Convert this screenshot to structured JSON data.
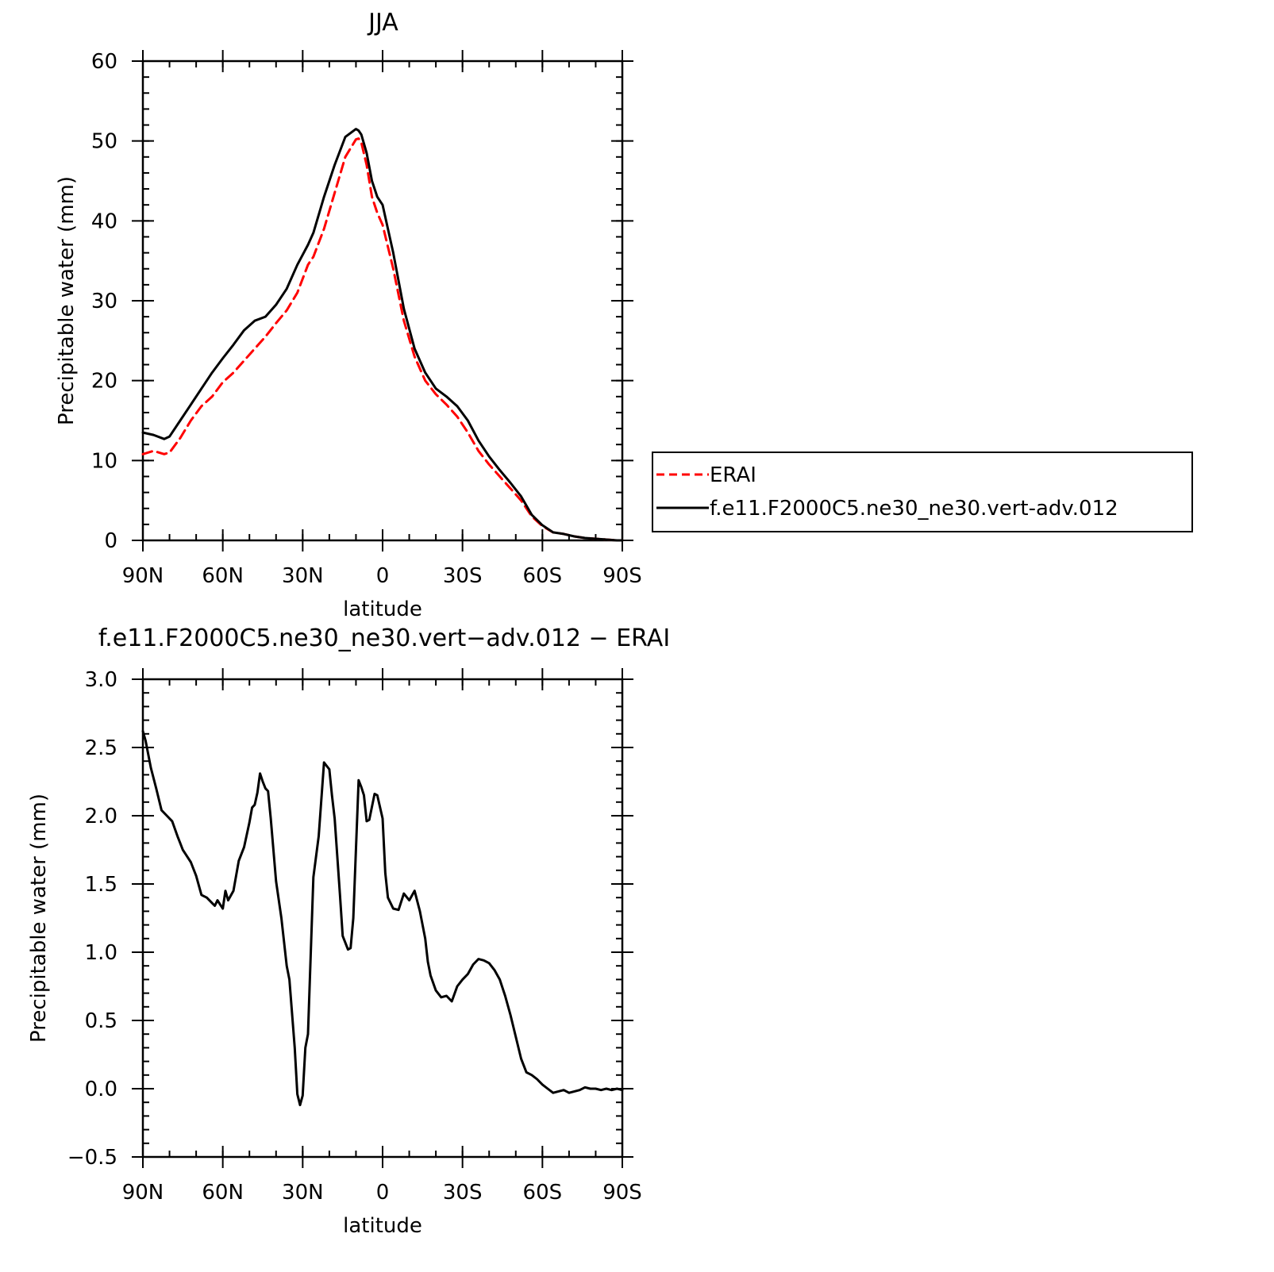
{
  "chart_data": [
    {
      "type": "line",
      "title": "JJA",
      "xlabel": "latitude",
      "ylabel": "Precipitable water (mm)",
      "xlim": [
        90,
        -90
      ],
      "ylim": [
        0,
        60
      ],
      "x_ticks": [
        90,
        60,
        30,
        0,
        -30,
        -60,
        -90
      ],
      "x_tick_labels": [
        "90N",
        "60N",
        "30N",
        "0",
        "30S",
        "60S",
        "90S"
      ],
      "y_ticks": [
        0,
        10,
        20,
        30,
        40,
        50,
        60
      ],
      "y_tick_labels": [
        "0",
        "10",
        "20",
        "30",
        "40",
        "50",
        "60"
      ],
      "legend_position": "right, outside plot",
      "series": [
        {
          "name": "ERAI",
          "color": "#ff0000",
          "style": "dashed",
          "x": [
            90,
            86,
            82,
            80,
            76,
            72,
            68,
            64,
            60,
            56,
            52,
            48,
            44,
            40,
            36,
            32,
            28,
            26,
            22,
            18,
            14,
            10,
            9,
            8,
            6,
            4,
            2,
            0,
            -4,
            -8,
            -12,
            -16,
            -20,
            -24,
            -28,
            -32,
            -36,
            -40,
            -44,
            -48,
            -52,
            -56,
            -60,
            -64,
            -68,
            -72,
            -76,
            -80,
            -84,
            -88,
            -90
          ],
          "values": [
            10.8,
            11.2,
            10.8,
            11.0,
            12.8,
            15.0,
            16.8,
            18.0,
            19.8,
            21.0,
            22.5,
            24.0,
            25.5,
            27.2,
            28.8,
            31.0,
            34.5,
            35.5,
            39.0,
            43.5,
            48.0,
            50.2,
            50.3,
            49.8,
            47.0,
            43.0,
            41.0,
            39.5,
            34.0,
            27.5,
            23.0,
            20.0,
            18.3,
            17.0,
            15.5,
            13.5,
            11.2,
            9.5,
            8.0,
            6.5,
            5.0,
            3.0,
            1.8,
            1.0,
            0.8,
            0.5,
            0.3,
            0.2,
            0.1,
            0.0,
            0.0
          ]
        },
        {
          "name": "f.e11.F2000C5.ne30_ne30.vert-adv.012",
          "color": "#000000",
          "style": "solid",
          "x": [
            90,
            86,
            82,
            80,
            76,
            72,
            68,
            64,
            60,
            56,
            52,
            48,
            44,
            40,
            36,
            32,
            28,
            26,
            22,
            18,
            14,
            10,
            9,
            8,
            6,
            4,
            2,
            0,
            -4,
            -8,
            -12,
            -16,
            -20,
            -24,
            -28,
            -32,
            -36,
            -40,
            -44,
            -48,
            -52,
            -56,
            -60,
            -64,
            -68,
            -72,
            -76,
            -80,
            -84,
            -88,
            -90
          ],
          "values": [
            13.5,
            13.2,
            12.7,
            13.0,
            15.0,
            17.0,
            19.0,
            21.0,
            22.8,
            24.5,
            26.3,
            27.5,
            28.0,
            29.5,
            31.5,
            34.5,
            37.0,
            38.5,
            43.0,
            47.0,
            50.5,
            51.5,
            51.3,
            50.8,
            48.5,
            45.0,
            43.0,
            42.0,
            36.0,
            29.0,
            24.0,
            21.0,
            19.0,
            18.0,
            16.8,
            15.0,
            12.5,
            10.5,
            8.8,
            7.2,
            5.5,
            3.2,
            1.9,
            1.0,
            0.8,
            0.5,
            0.3,
            0.2,
            0.1,
            0.0,
            0.0
          ]
        }
      ]
    },
    {
      "type": "line",
      "title": "f.e11.F2000C5.ne30_ne30.vert−adv.012 − ERAI",
      "xlabel": "latitude",
      "ylabel": "Precipitable water (mm)",
      "xlim": [
        90,
        -90
      ],
      "ylim": [
        -0.5,
        3.0
      ],
      "x_ticks": [
        90,
        60,
        30,
        0,
        -30,
        -60,
        -90
      ],
      "x_tick_labels": [
        "90N",
        "60N",
        "30N",
        "0",
        "30S",
        "60S",
        "90S"
      ],
      "y_ticks": [
        -0.5,
        0.0,
        0.5,
        1.0,
        1.5,
        2.0,
        2.5,
        3.0
      ],
      "y_tick_labels": [
        "−0.5",
        "0.0",
        "0.5",
        "1.0",
        "1.5",
        "2.0",
        "2.5",
        "3.0"
      ],
      "series": [
        {
          "color": "#000000",
          "style": "solid",
          "x": [
            90,
            89,
            87,
            85,
            83,
            81,
            79,
            77,
            76,
            75,
            74,
            72,
            70,
            68,
            66,
            64,
            63,
            62,
            61,
            60,
            59,
            58,
            56,
            54,
            52,
            50,
            49,
            48,
            47,
            46,
            45,
            44,
            43,
            42,
            40,
            38,
            36,
            35,
            33,
            32,
            31,
            30,
            29,
            28,
            26,
            24,
            22,
            20,
            19,
            18,
            16,
            15,
            13,
            12,
            11,
            10,
            9,
            8,
            7,
            6,
            5,
            3,
            2,
            0,
            -1,
            -2,
            -4,
            -6,
            -8,
            -10,
            -12,
            -14,
            -16,
            -17,
            -18,
            -20,
            -22,
            -24,
            -26,
            -28,
            -30,
            -32,
            -34,
            -36,
            -38,
            -40,
            -42,
            -44,
            -46,
            -48,
            -50,
            -52,
            -54,
            -56,
            -58,
            -60,
            -62,
            -64,
            -66,
            -68,
            -70,
            -72,
            -74,
            -76,
            -78,
            -80,
            -82,
            -84,
            -86,
            -88,
            -90
          ],
          "values": [
            2.62,
            2.55,
            2.35,
            2.2,
            2.04,
            2.0,
            1.96,
            1.85,
            1.8,
            1.75,
            1.72,
            1.66,
            1.56,
            1.42,
            1.4,
            1.36,
            1.34,
            1.38,
            1.35,
            1.32,
            1.45,
            1.38,
            1.45,
            1.67,
            1.77,
            1.95,
            2.06,
            2.08,
            2.17,
            2.31,
            2.25,
            2.2,
            2.18,
            1.98,
            1.52,
            1.25,
            0.9,
            0.8,
            0.3,
            -0.04,
            -0.12,
            -0.05,
            0.3,
            0.4,
            1.55,
            1.85,
            2.39,
            2.34,
            2.15,
            1.98,
            1.42,
            1.12,
            1.02,
            1.03,
            1.25,
            1.75,
            2.26,
            2.21,
            2.15,
            1.96,
            1.97,
            2.16,
            2.15,
            1.98,
            1.58,
            1.4,
            1.32,
            1.31,
            1.43,
            1.38,
            1.45,
            1.3,
            1.1,
            0.93,
            0.83,
            0.72,
            0.67,
            0.68,
            0.64,
            0.75,
            0.8,
            0.84,
            0.91,
            0.95,
            0.94,
            0.92,
            0.87,
            0.8,
            0.68,
            0.54,
            0.38,
            0.22,
            0.12,
            0.1,
            0.07,
            0.03,
            0.0,
            -0.03,
            -0.02,
            -0.01,
            -0.03,
            -0.02,
            -0.01,
            0.01,
            0.0,
            0.0,
            -0.01,
            0.0,
            -0.01,
            0.0,
            -0.01
          ]
        }
      ]
    }
  ]
}
